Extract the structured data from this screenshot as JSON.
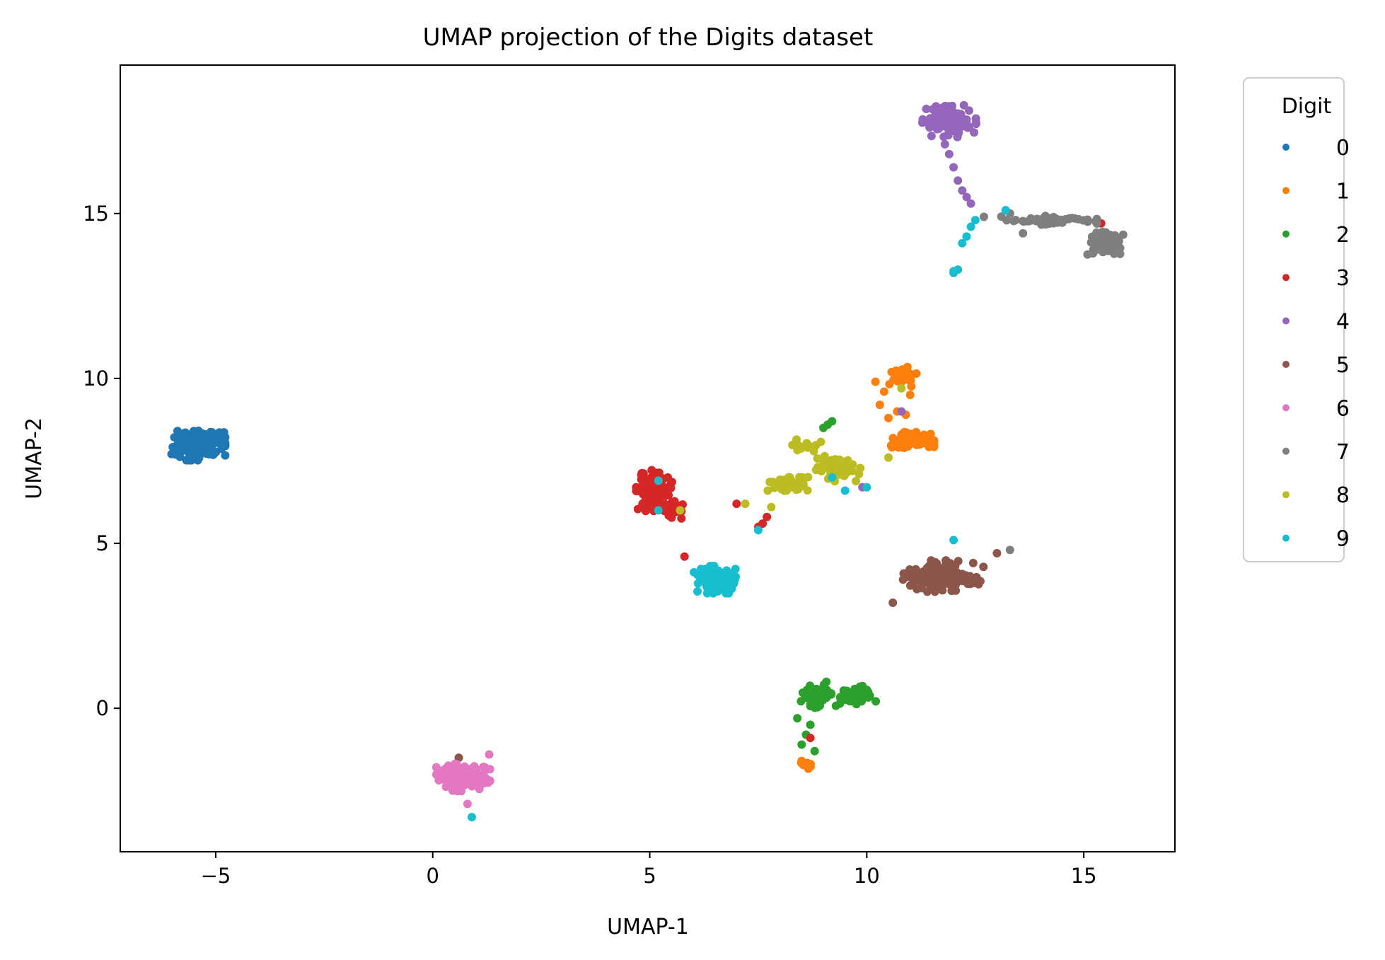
{
  "chart_data": {
    "type": "scatter",
    "title": "UMAP projection of the Digits dataset",
    "xlabel": "UMAP-1",
    "ylabel": "UMAP-2",
    "xlim": [
      -7.2,
      17.1
    ],
    "ylim": [
      -4.35,
      19.5
    ],
    "xticks": [
      -5,
      0,
      5,
      10,
      15
    ],
    "yticks": [
      0,
      5,
      10,
      15
    ],
    "xtick_labels": [
      "−5",
      "0",
      "5",
      "10",
      "15"
    ],
    "ytick_labels": [
      "0",
      "5",
      "10",
      "15"
    ],
    "grid": false,
    "legend": {
      "title": "Digit",
      "placement": "outside-right-top",
      "entries": [
        "0",
        "1",
        "2",
        "3",
        "4",
        "5",
        "6",
        "7",
        "8",
        "9"
      ]
    },
    "series": [
      {
        "name": "0",
        "color": "#1f77b4",
        "clusters": [
          {
            "center": [
              -5.4,
              8.0
            ],
            "spread": [
              0.45,
              0.35
            ],
            "count": 170
          }
        ],
        "points": []
      },
      {
        "name": "1",
        "color": "#ff7f0e",
        "clusters": [
          {
            "center": [
              10.8,
              10.1
            ],
            "spread": [
              0.25,
              0.25
            ],
            "count": 40
          },
          {
            "center": [
              11.0,
              8.1
            ],
            "spread": [
              0.4,
              0.2
            ],
            "count": 70
          },
          {
            "center": [
              8.6,
              -1.7
            ],
            "spread": [
              0.1,
              0.1
            ],
            "count": 10
          }
        ],
        "points": [
          [
            10.4,
            9.6
          ],
          [
            10.3,
            9.2
          ],
          [
            10.5,
            8.8
          ],
          [
            10.7,
            9.0
          ],
          [
            10.2,
            9.9
          ],
          [
            11.0,
            9.5
          ],
          [
            10.9,
            8.9
          ]
        ]
      },
      {
        "name": "2",
        "color": "#2ca02c",
        "clusters": [
          {
            "center": [
              9.8,
              0.4
            ],
            "spread": [
              0.3,
              0.2
            ],
            "count": 60
          },
          {
            "center": [
              8.9,
              0.4
            ],
            "spread": [
              0.35,
              0.3
            ],
            "count": 50
          }
        ],
        "points": [
          [
            8.7,
            -0.5
          ],
          [
            8.6,
            -0.8
          ],
          [
            8.5,
            -1.1
          ],
          [
            8.8,
            -1.3
          ],
          [
            8.4,
            -0.3
          ],
          [
            9.1,
            8.6
          ],
          [
            9.0,
            8.5
          ],
          [
            9.2,
            8.7
          ]
        ]
      },
      {
        "name": "3",
        "color": "#d62728",
        "clusters": [
          {
            "center": [
              5.1,
              6.6
            ],
            "spread": [
              0.3,
              0.45
            ],
            "count": 130
          },
          {
            "center": [
              5.5,
              6.0
            ],
            "spread": [
              0.2,
              0.2
            ],
            "count": 30
          }
        ],
        "points": [
          [
            7.5,
            5.5
          ],
          [
            7.6,
            5.6
          ],
          [
            7.0,
            6.2
          ],
          [
            7.7,
            5.8
          ],
          [
            8.7,
            -0.9
          ],
          [
            15.4,
            14.7
          ],
          [
            5.8,
            4.6
          ]
        ]
      },
      {
        "name": "4",
        "color": "#9467bd",
        "clusters": [
          {
            "center": [
              11.9,
              17.8
            ],
            "spread": [
              0.45,
              0.35
            ],
            "count": 120
          }
        ],
        "points": [
          [
            11.9,
            16.8
          ],
          [
            12.0,
            16.4
          ],
          [
            12.1,
            16.0
          ],
          [
            12.2,
            15.7
          ],
          [
            12.3,
            15.5
          ],
          [
            12.4,
            15.3
          ],
          [
            11.8,
            17.1
          ],
          [
            10.8,
            9.0
          ],
          [
            9.9,
            6.7
          ]
        ]
      },
      {
        "name": "5",
        "color": "#8c564b",
        "clusters": [
          {
            "center": [
              11.8,
              4.0
            ],
            "spread": [
              0.7,
              0.35
            ],
            "count": 160
          }
        ],
        "points": [
          [
            10.6,
            3.2
          ],
          [
            13.0,
            4.7
          ],
          [
            0.6,
            -1.5
          ]
        ]
      },
      {
        "name": "6",
        "color": "#e377c2",
        "clusters": [
          {
            "center": [
              0.7,
              -2.1
            ],
            "spread": [
              0.45,
              0.3
            ],
            "count": 170
          }
        ],
        "points": [
          [
            1.3,
            -1.4
          ],
          [
            0.8,
            -2.9
          ]
        ]
      },
      {
        "name": "7",
        "color": "#7f7f7f",
        "clusters": [
          {
            "center": [
              14.2,
              14.8
            ],
            "spread": [
              0.8,
              0.1
            ],
            "count": 70
          },
          {
            "center": [
              15.5,
              14.1
            ],
            "spread": [
              0.3,
              0.25
            ],
            "count": 90
          }
        ],
        "points": [
          [
            13.3,
            15.0
          ],
          [
            13.6,
            14.4
          ],
          [
            12.7,
            14.9
          ],
          [
            13.3,
            4.8
          ]
        ]
      },
      {
        "name": "8",
        "color": "#bcbd22",
        "clusters": [
          {
            "center": [
              9.3,
              7.3
            ],
            "spread": [
              0.4,
              0.3
            ],
            "count": 80
          },
          {
            "center": [
              8.2,
              6.8
            ],
            "spread": [
              0.35,
              0.15
            ],
            "count": 50
          },
          {
            "center": [
              8.6,
              8.0
            ],
            "spread": [
              0.25,
              0.15
            ],
            "count": 15
          }
        ],
        "points": [
          [
            7.2,
            6.2
          ],
          [
            7.8,
            6.1
          ],
          [
            5.7,
            6.0
          ],
          [
            10.8,
            9.7
          ],
          [
            10.5,
            7.6
          ]
        ]
      },
      {
        "name": "9",
        "color": "#17becf",
        "clusters": [
          {
            "center": [
              6.5,
              3.9
            ],
            "spread": [
              0.35,
              0.3
            ],
            "count": 150
          }
        ],
        "points": [
          [
            12.0,
            13.2
          ],
          [
            12.1,
            13.3
          ],
          [
            12.0,
            13.25
          ],
          [
            12.2,
            14.1
          ],
          [
            12.3,
            14.3
          ],
          [
            12.4,
            14.6
          ],
          [
            12.5,
            14.8
          ],
          [
            13.2,
            15.1
          ],
          [
            5.2,
            6.9
          ],
          [
            5.2,
            6.0
          ],
          [
            7.5,
            5.4
          ],
          [
            9.2,
            7.0
          ],
          [
            9.5,
            6.6
          ],
          [
            10.0,
            6.7
          ],
          [
            12.0,
            5.1
          ],
          [
            0.9,
            -3.3
          ]
        ]
      }
    ]
  }
}
